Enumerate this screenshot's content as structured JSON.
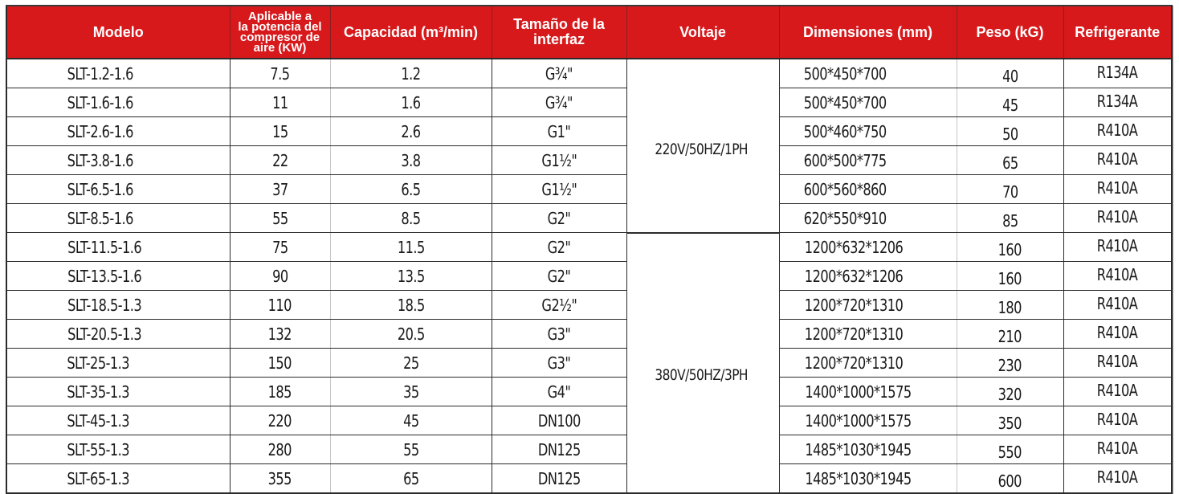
{
  "table": {
    "headers": [
      "Modelo",
      "Aplicable a la potencia del compresor de aire (KW)",
      "Capacidad (m³/min)",
      "Tamaño de la interfaz",
      "Voltaje",
      "Dimensiones (mm)",
      "Peso (kG)",
      "Refrigerante"
    ],
    "header_lines": {
      "power": [
        "Aplicable a",
        "la potencia del",
        "compresor de",
        "aire (KW)"
      ],
      "interface": [
        "Tamaño de la",
        "interfaz"
      ]
    },
    "voltage_groups": [
      {
        "label": "220V/50HZ/1PH",
        "rowspan": 6
      },
      {
        "label": "380V/50HZ/3PH",
        "rowspan": 9
      }
    ],
    "rows": [
      {
        "model": "SLT-1.2-1.6",
        "power_kw": "7.5",
        "capacity": "1.2",
        "interface": "G¾\"",
        "dimensions": "500*450*700",
        "weight": "40",
        "refrigerant": "R134A"
      },
      {
        "model": "SLT-1.6-1.6",
        "power_kw": "11",
        "capacity": "1.6",
        "interface": "G¾\"",
        "dimensions": "500*450*700",
        "weight": "45",
        "refrigerant": "R134A"
      },
      {
        "model": "SLT-2.6-1.6",
        "power_kw": "15",
        "capacity": "2.6",
        "interface": "G1\"",
        "dimensions": "500*460*750",
        "weight": "50",
        "refrigerant": "R410A"
      },
      {
        "model": "SLT-3.8-1.6",
        "power_kw": "22",
        "capacity": "3.8",
        "interface": "G1½\"",
        "dimensions": "600*500*775",
        "weight": "65",
        "refrigerant": "R410A"
      },
      {
        "model": "SLT-6.5-1.6",
        "power_kw": "37",
        "capacity": "6.5",
        "interface": "G1½\"",
        "dimensions": "600*560*860",
        "weight": "70",
        "refrigerant": "R410A"
      },
      {
        "model": "SLT-8.5-1.6",
        "power_kw": "55",
        "capacity": "8.5",
        "interface": "G2\"",
        "dimensions": "620*550*910",
        "weight": "85",
        "refrigerant": "R410A"
      },
      {
        "model": "SLT-11.5-1.6",
        "power_kw": "75",
        "capacity": "11.5",
        "interface": "G2\"",
        "dimensions": "1200*632*1206",
        "weight": "160",
        "refrigerant": "R410A"
      },
      {
        "model": "SLT-13.5-1.6",
        "power_kw": "90",
        "capacity": "13.5",
        "interface": "G2\"",
        "dimensions": "1200*632*1206",
        "weight": "160",
        "refrigerant": "R410A"
      },
      {
        "model": "SLT-18.5-1.3",
        "power_kw": "110",
        "capacity": "18.5",
        "interface": "G2½\"",
        "dimensions": "1200*720*1310",
        "weight": "180",
        "refrigerant": "R410A"
      },
      {
        "model": "SLT-20.5-1.3",
        "power_kw": "132",
        "capacity": "20.5",
        "interface": "G3\"",
        "dimensions": "1200*720*1310",
        "weight": "210",
        "refrigerant": "R410A"
      },
      {
        "model": "SLT-25-1.3",
        "power_kw": "150",
        "capacity": "25",
        "interface": "G3\"",
        "dimensions": "1200*720*1310",
        "weight": "230",
        "refrigerant": "R410A"
      },
      {
        "model": "SLT-35-1.3",
        "power_kw": "185",
        "capacity": "35",
        "interface": "G4\"",
        "dimensions": "1400*1000*1575",
        "weight": "320",
        "refrigerant": "R410A"
      },
      {
        "model": "SLT-45-1.3",
        "power_kw": "220",
        "capacity": "45",
        "interface": "DN100",
        "dimensions": "1400*1000*1575",
        "weight": "350",
        "refrigerant": "R410A"
      },
      {
        "model": "SLT-55-1.3",
        "power_kw": "280",
        "capacity": "55",
        "interface": "DN125",
        "dimensions": "1485*1030*1945",
        "weight": "550",
        "refrigerant": "R410A"
      },
      {
        "model": "SLT-65-1.3",
        "power_kw": "355",
        "capacity": "65",
        "interface": "DN125",
        "dimensions": "1485*1030*1945",
        "weight": "600",
        "refrigerant": "R410A"
      }
    ]
  },
  "colors": {
    "header_bg": "#d7191c",
    "header_text": "#ffffff",
    "body_text": "#1a1a1a",
    "border_dark": "#2b2b2b",
    "border_light": "#c6c6c6"
  }
}
